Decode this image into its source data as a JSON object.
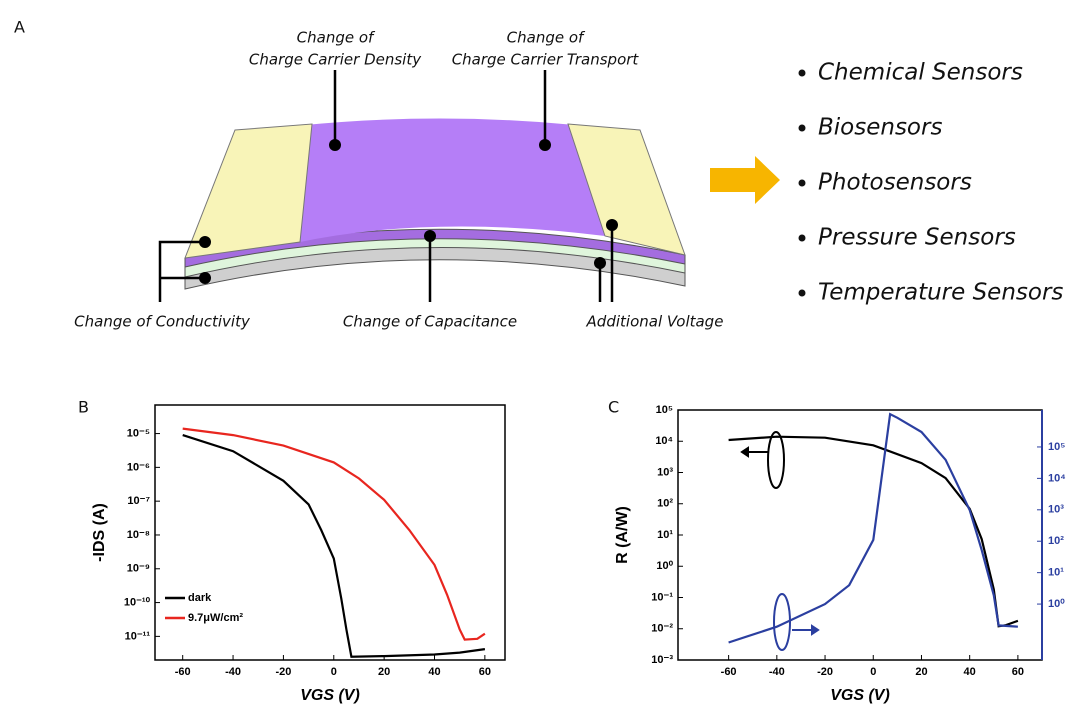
{
  "panel_labels": [
    "A",
    "B",
    "C"
  ],
  "diagram": {
    "density": [
      "Change of",
      "Charge Carrier Density"
    ],
    "transport": [
      "Change of",
      "Charge Carrier Transport"
    ],
    "conductivity": "Change of Conductivity",
    "capacitance": "Change of Capacitance",
    "voltage": "Additional Voltage"
  },
  "applications": [
    "Chemical Sensors",
    "Biosensors",
    "Photosensors",
    "Pressure Sensors",
    "Temperature Sensors"
  ],
  "chart_data": [
    {
      "type": "line",
      "xlabel": "VGS (V)",
      "ylabel": "-IDS (A)",
      "y_log": true,
      "xlim": [
        -71,
        68
      ],
      "xticks": [
        -60,
        -40,
        -20,
        0,
        20,
        40,
        60
      ],
      "ylim": [
        2e-12,
        7e-05
      ],
      "yticks": [
        {
          "value": 1e-05,
          "label": "10⁻⁵"
        },
        {
          "value": 1e-06,
          "label": "10⁻⁶"
        },
        {
          "value": 1e-07,
          "label": "10⁻⁷"
        },
        {
          "value": 1e-08,
          "label": "10⁻⁸"
        },
        {
          "value": 1e-09,
          "label": "10⁻⁹"
        },
        {
          "value": 1e-10,
          "label": "10⁻¹⁰"
        },
        {
          "value": 1e-11,
          "label": "10⁻¹¹"
        }
      ],
      "legend": "lower left",
      "series": [
        {
          "name": "dark",
          "color": "#000000",
          "x": [
            -60,
            -40,
            -20,
            -10,
            -5,
            0,
            3,
            5,
            7,
            20,
            40,
            50,
            60
          ],
          "values": [
            9e-06,
            3e-06,
            4e-07,
            8e-08,
            1.4e-08,
            2e-09,
            1.3e-10,
            1.6e-11,
            2.5e-12,
            2.6e-12,
            2.9e-12,
            3.3e-12,
            4.2e-12
          ]
        },
        {
          "name": "9.7μW/cm²",
          "color": "#e8261f",
          "x": [
            -60,
            -40,
            -20,
            0,
            10,
            20,
            30,
            40,
            45,
            50,
            52,
            57,
            60
          ],
          "values": [
            1.4e-05,
            9e-06,
            4.4e-06,
            1.4e-06,
            4.7e-07,
            1.1e-07,
            1.4e-08,
            1.3e-09,
            1.7e-10,
            1.6e-11,
            8e-12,
            8.5e-12,
            1.2e-11
          ]
        }
      ]
    },
    {
      "type": "line",
      "xlabel": "VGS (V)",
      "ylabel": "R (A/W)",
      "y_log": true,
      "xlim": [
        -81,
        70
      ],
      "xticks": [
        -60,
        -40,
        -20,
        0,
        20,
        40,
        60
      ],
      "ylim": [
        0.001,
        100000
      ],
      "yticks": [
        {
          "value": 100000,
          "label": "10⁵"
        },
        {
          "value": 10000,
          "label": "10⁴"
        },
        {
          "value": 1000,
          "label": "10³"
        },
        {
          "value": 100,
          "label": "10²"
        },
        {
          "value": 10,
          "label": "10¹"
        },
        {
          "value": 1,
          "label": "10⁰"
        },
        {
          "value": 0.1,
          "label": "10⁻¹"
        },
        {
          "value": 0.01,
          "label": "10⁻²"
        },
        {
          "value": 0.001,
          "label": "10⁻³"
        }
      ],
      "y2lim": [
        0.0166,
        1500000
      ],
      "y2ticks": [
        {
          "value": 100000,
          "label": "10⁵"
        },
        {
          "value": 10000,
          "label": "10⁴"
        },
        {
          "value": 1000,
          "label": "10³"
        },
        {
          "value": 100,
          "label": "10²"
        },
        {
          "value": 10,
          "label": "10¹"
        },
        {
          "value": 1,
          "label": "10⁰"
        }
      ],
      "y2color": "#2b3fa0",
      "series": [
        {
          "color": "#000000",
          "x": [
            -60,
            -40,
            -20,
            0,
            20,
            30,
            40,
            45,
            50,
            52,
            55,
            60
          ],
          "values": [
            11000,
            14000,
            13000,
            7400,
            2000,
            660,
            69,
            7.4,
            0.18,
            0.012,
            0.013,
            0.018
          ]
        },
        {
          "color": "#2b3fa0",
          "axis": "y2",
          "x": [
            -60,
            -40,
            -20,
            -10,
            0,
            5,
            7,
            10,
            20,
            30,
            40,
            45,
            50,
            52,
            60
          ],
          "values": [
            0.06,
            0.19,
            1,
            4,
            110,
            80000,
            1100000,
            850000,
            300000,
            39000,
            980,
            52,
            1.9,
            0.21,
            0.19
          ]
        }
      ]
    }
  ]
}
